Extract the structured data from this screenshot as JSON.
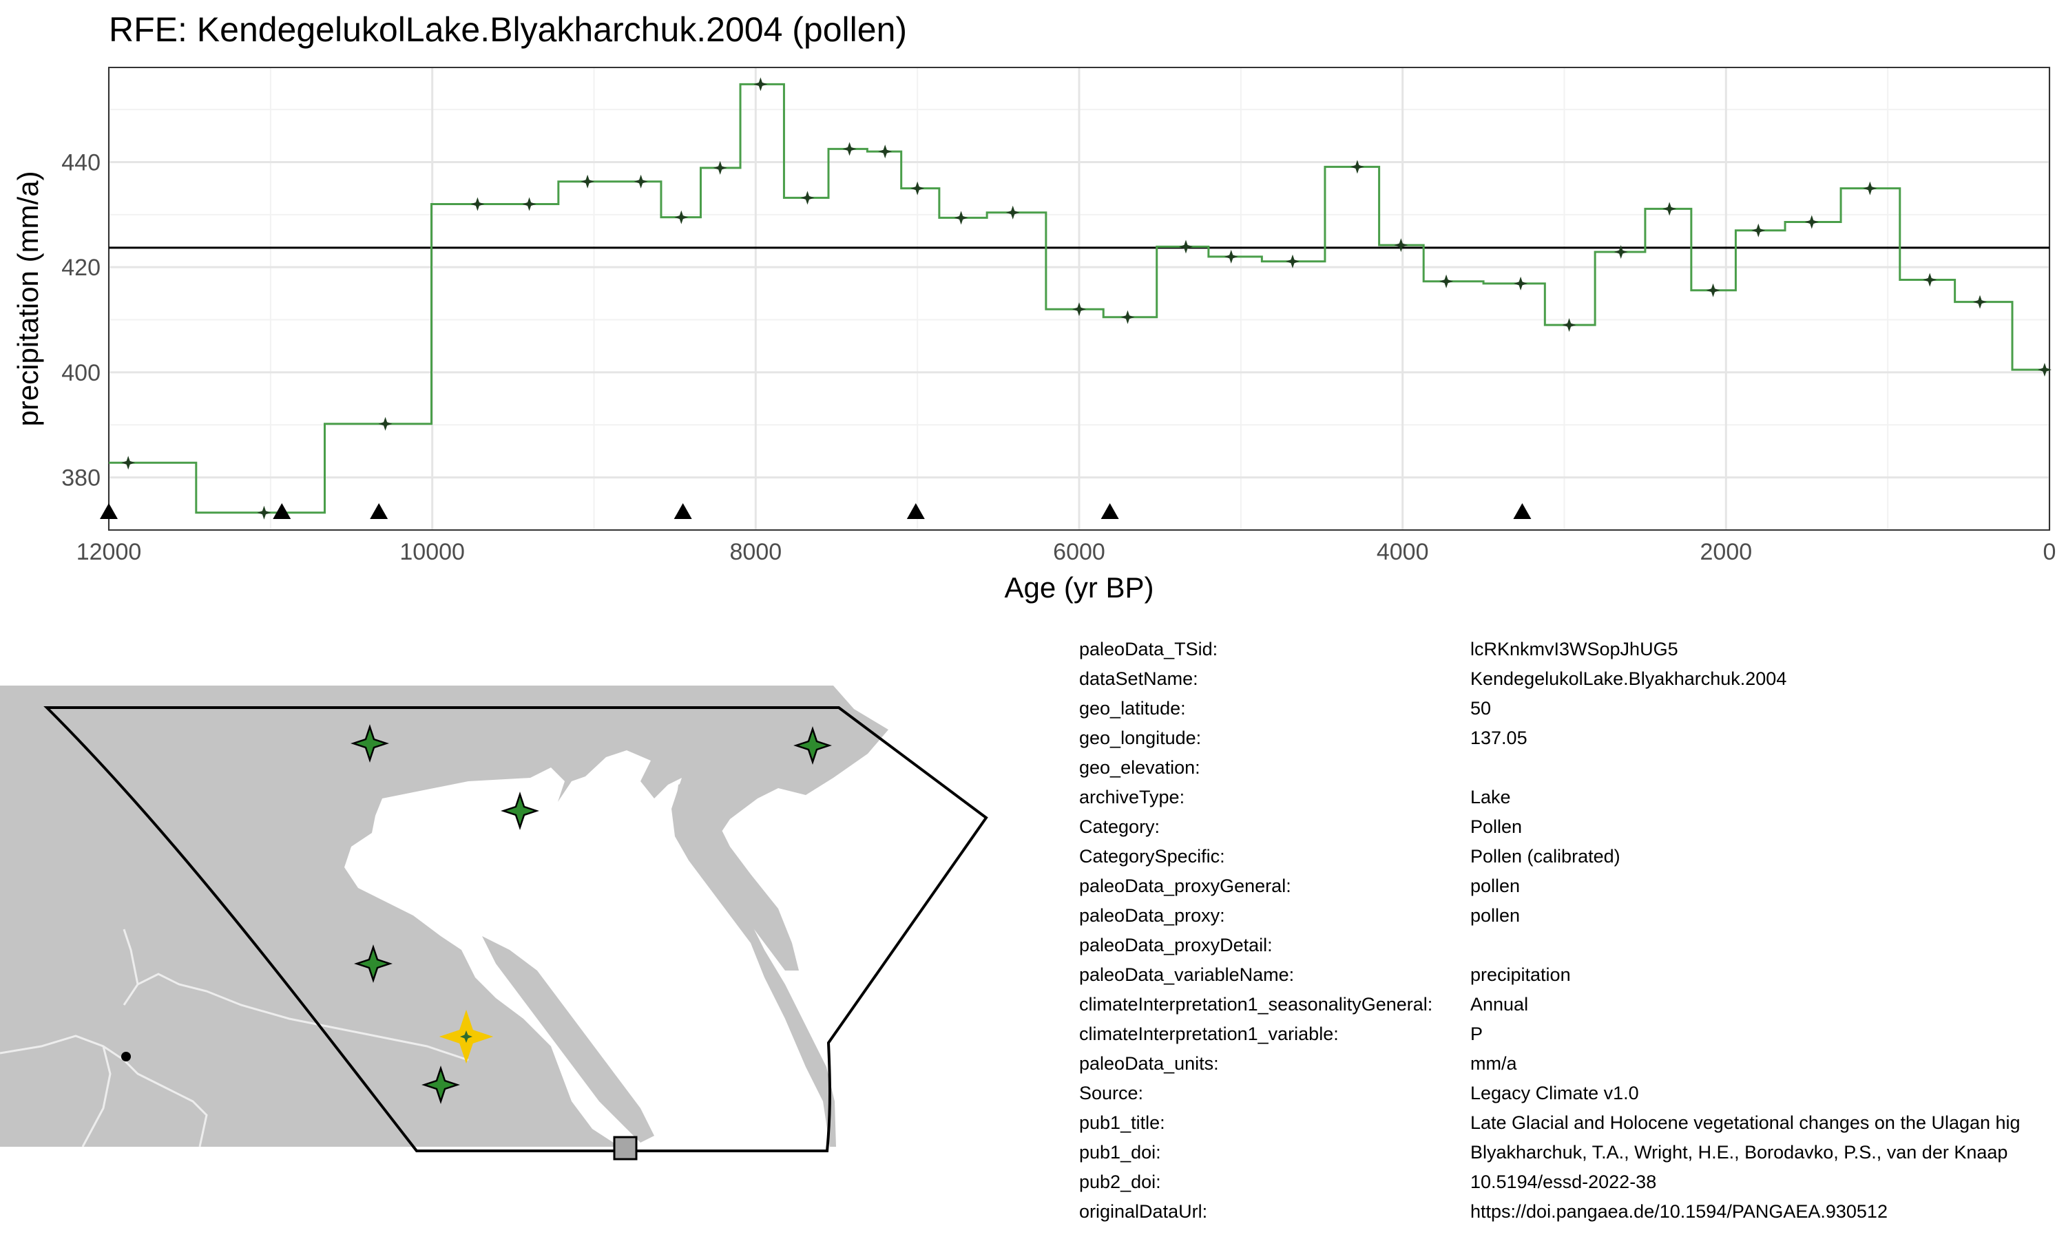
{
  "chart_data": {
    "type": "line",
    "title": "RFE: KendegelukolLake.Blyakharchuk.2004 (pollen)",
    "xlabel": "Age (yr BP)",
    "ylabel": "precipitation (mm/a)",
    "xlim": [
      12000,
      0
    ],
    "ylim": [
      370,
      458
    ],
    "x_reversed": true,
    "xticks": [
      12000,
      10000,
      8000,
      6000,
      4000,
      2000,
      0
    ],
    "yticks": [
      380,
      400,
      420,
      440
    ],
    "grid": true,
    "mean_line": 423.7,
    "line_color": "#4a9e4a",
    "marker_color": "#1f3d1f",
    "x": [
      11880,
      11040,
      10290,
      9720,
      9400,
      9040,
      8710,
      8460,
      8220,
      7970,
      7680,
      7420,
      7200,
      7000,
      6730,
      6410,
      6000,
      5700,
      5340,
      5060,
      4680,
      4280,
      4010,
      3730,
      3270,
      2970,
      2650,
      2350,
      2080,
      1800,
      1470,
      1110,
      740,
      430,
      30
    ],
    "y": [
      382.8,
      373.3,
      390.2,
      432.0,
      432.0,
      436.3,
      436.3,
      429.5,
      438.9,
      454.8,
      433.2,
      442.5,
      442.0,
      435.0,
      429.4,
      430.4,
      412.0,
      410.5,
      423.9,
      422.0,
      421.1,
      439.1,
      424.2,
      417.3,
      416.9,
      409.0,
      422.9,
      431.1,
      415.6,
      427.0,
      428.6,
      435.0,
      417.6,
      413.4,
      400.5
    ],
    "event_marks_x": [
      12000,
      10930,
      10330,
      8450,
      7010,
      5810,
      3260
    ]
  },
  "map": {
    "land_color": "#c4c4c4",
    "border_color": "#ededed",
    "region_outline_color": "#000000",
    "site_color": "#2e8b2e",
    "target_color": "#f5c800"
  },
  "metadata": [
    {
      "key": "paleoData_TSid:",
      "value": "lcRKnkmvI3WSopJhUG5"
    },
    {
      "key": "dataSetName:",
      "value": "KendegelukolLake.Blyakharchuk.2004"
    },
    {
      "key": "geo_latitude:",
      "value": "50"
    },
    {
      "key": "geo_longitude:",
      "value": "137.05"
    },
    {
      "key": "geo_elevation:",
      "value": ""
    },
    {
      "key": "archiveType:",
      "value": "Lake"
    },
    {
      "key": "Category:",
      "value": "Pollen"
    },
    {
      "key": "CategorySpecific:",
      "value": "Pollen (calibrated)"
    },
    {
      "key": "paleoData_proxyGeneral:",
      "value": "pollen"
    },
    {
      "key": "paleoData_proxy:",
      "value": "pollen"
    },
    {
      "key": "paleoData_proxyDetail:",
      "value": ""
    },
    {
      "key": "paleoData_variableName:",
      "value": "precipitation"
    },
    {
      "key": "climateInterpretation1_seasonalityGeneral:",
      "value": "Annual"
    },
    {
      "key": "climateInterpretation1_variable:",
      "value": "P"
    },
    {
      "key": "paleoData_units:",
      "value": "mm/a"
    },
    {
      "key": "Source:",
      "value": "Legacy Climate v1.0"
    },
    {
      "key": "pub1_title:",
      "value": "Late Glacial and Holocene vegetational changes on the Ulagan hig"
    },
    {
      "key": "pub1_doi:",
      "value": "Blyakharchuk, T.A., Wright, H.E., Borodavko, P.S., van der Knaap"
    },
    {
      "key": "pub2_doi:",
      "value": "10.5194/essd-2022-38"
    },
    {
      "key": "originalDataUrl:",
      "value": "https://doi.pangaea.de/10.1594/PANGAEA.930512"
    }
  ]
}
